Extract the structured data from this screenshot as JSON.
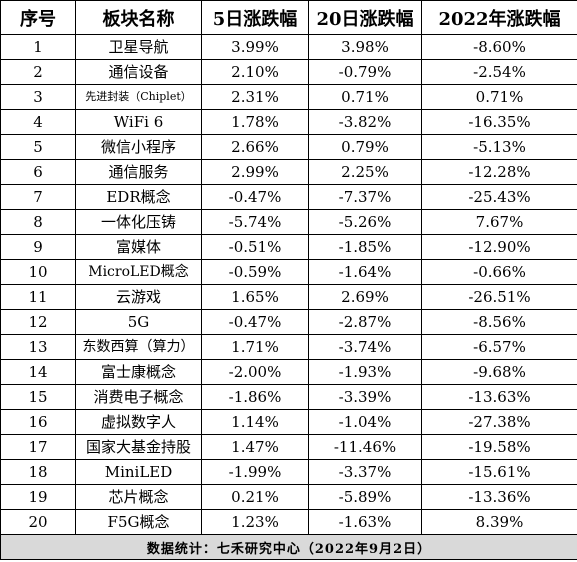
{
  "headers": [
    "序号",
    "板块名称",
    "5日涨跌幅",
    "20日涨跌幅",
    "2022年涨跌幅"
  ],
  "rows": [
    {
      "no": "1",
      "name": "卫星导航",
      "d5": "3.99%",
      "d20": "3.98%",
      "ytd": "-8.60%"
    },
    {
      "no": "2",
      "name": "通信设备",
      "d5": "2.10%",
      "d20": "-0.79%",
      "ytd": "-2.54%"
    },
    {
      "no": "3",
      "name": "先进封装（Chiplet）",
      "d5": "2.31%",
      "d20": "0.71%",
      "ytd": "0.71%"
    },
    {
      "no": "4",
      "name": "WiFi 6",
      "d5": "1.78%",
      "d20": "-3.82%",
      "ytd": "-16.35%"
    },
    {
      "no": "5",
      "name": "微信小程序",
      "d5": "2.66%",
      "d20": "0.79%",
      "ytd": "-5.13%"
    },
    {
      "no": "6",
      "name": "通信服务",
      "d5": "2.99%",
      "d20": "2.25%",
      "ytd": "-12.28%"
    },
    {
      "no": "7",
      "name": "EDR概念",
      "d5": "-0.47%",
      "d20": "-7.37%",
      "ytd": "-25.43%"
    },
    {
      "no": "8",
      "name": "一体化压铸",
      "d5": "-5.74%",
      "d20": "-5.26%",
      "ytd": "7.67%"
    },
    {
      "no": "9",
      "name": "富媒体",
      "d5": "-0.51%",
      "d20": "-1.85%",
      "ytd": "-12.90%"
    },
    {
      "no": "10",
      "name": "MicroLED概念",
      "d5": "-0.59%",
      "d20": "-1.64%",
      "ytd": "-0.66%"
    },
    {
      "no": "11",
      "name": "云游戏",
      "d5": "1.65%",
      "d20": "2.69%",
      "ytd": "-26.51%"
    },
    {
      "no": "12",
      "name": "5G",
      "d5": "-0.47%",
      "d20": "-2.87%",
      "ytd": "-8.56%"
    },
    {
      "no": "13",
      "name": "东数西算（算力）",
      "d5": "1.71%",
      "d20": "-3.74%",
      "ytd": "-6.57%"
    },
    {
      "no": "14",
      "name": "富士康概念",
      "d5": "-2.00%",
      "d20": "-1.93%",
      "ytd": "-9.68%"
    },
    {
      "no": "15",
      "name": "消费电子概念",
      "d5": "-1.86%",
      "d20": "-3.39%",
      "ytd": "-13.63%"
    },
    {
      "no": "16",
      "name": "虚拟数字人",
      "d5": "1.14%",
      "d20": "-1.04%",
      "ytd": "-27.38%"
    },
    {
      "no": "17",
      "name": "国家大基金持股",
      "d5": "1.47%",
      "d20": "-11.46%",
      "ytd": "-19.58%"
    },
    {
      "no": "18",
      "name": "MiniLED",
      "d5": "-1.99%",
      "d20": "-3.37%",
      "ytd": "-15.61%"
    },
    {
      "no": "19",
      "name": "芯片概念",
      "d5": "0.21%",
      "d20": "-5.89%",
      "ytd": "-13.36%"
    },
    {
      "no": "20",
      "name": "F5G概念",
      "d5": "1.23%",
      "d20": "-1.63%",
      "ytd": "8.39%"
    }
  ],
  "footer": "数据统计：七禾研究中心（2022年9月2日）"
}
